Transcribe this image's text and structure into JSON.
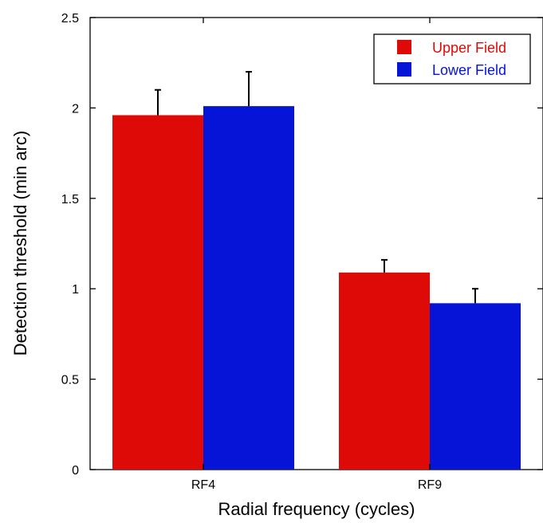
{
  "chart_data": {
    "type": "bar",
    "title": "",
    "xlabel": "Radial frequency (cycles)",
    "ylabel": "Detection threshold (min arc)",
    "categories": [
      "RF4",
      "RF9"
    ],
    "series": [
      {
        "name": "Upper Field",
        "color": "#dd0a07",
        "values": [
          1.96,
          1.09
        ],
        "errors": [
          0.14,
          0.07
        ]
      },
      {
        "name": "Lower Field",
        "color": "#0514d6",
        "values": [
          2.01,
          0.92
        ],
        "errors": [
          0.19,
          0.08
        ]
      }
    ],
    "ylim": [
      0,
      2.5
    ],
    "yticks": [
      {
        "value": 0,
        "label": "0"
      },
      {
        "value": 0.5,
        "label": "0.5"
      },
      {
        "value": 1,
        "label": "1"
      },
      {
        "value": 1.5,
        "label": "1.5"
      },
      {
        "value": 2,
        "label": "2"
      },
      {
        "value": 2.5,
        "label": "2.5"
      }
    ],
    "grid": false,
    "legend_position": "top-right"
  }
}
